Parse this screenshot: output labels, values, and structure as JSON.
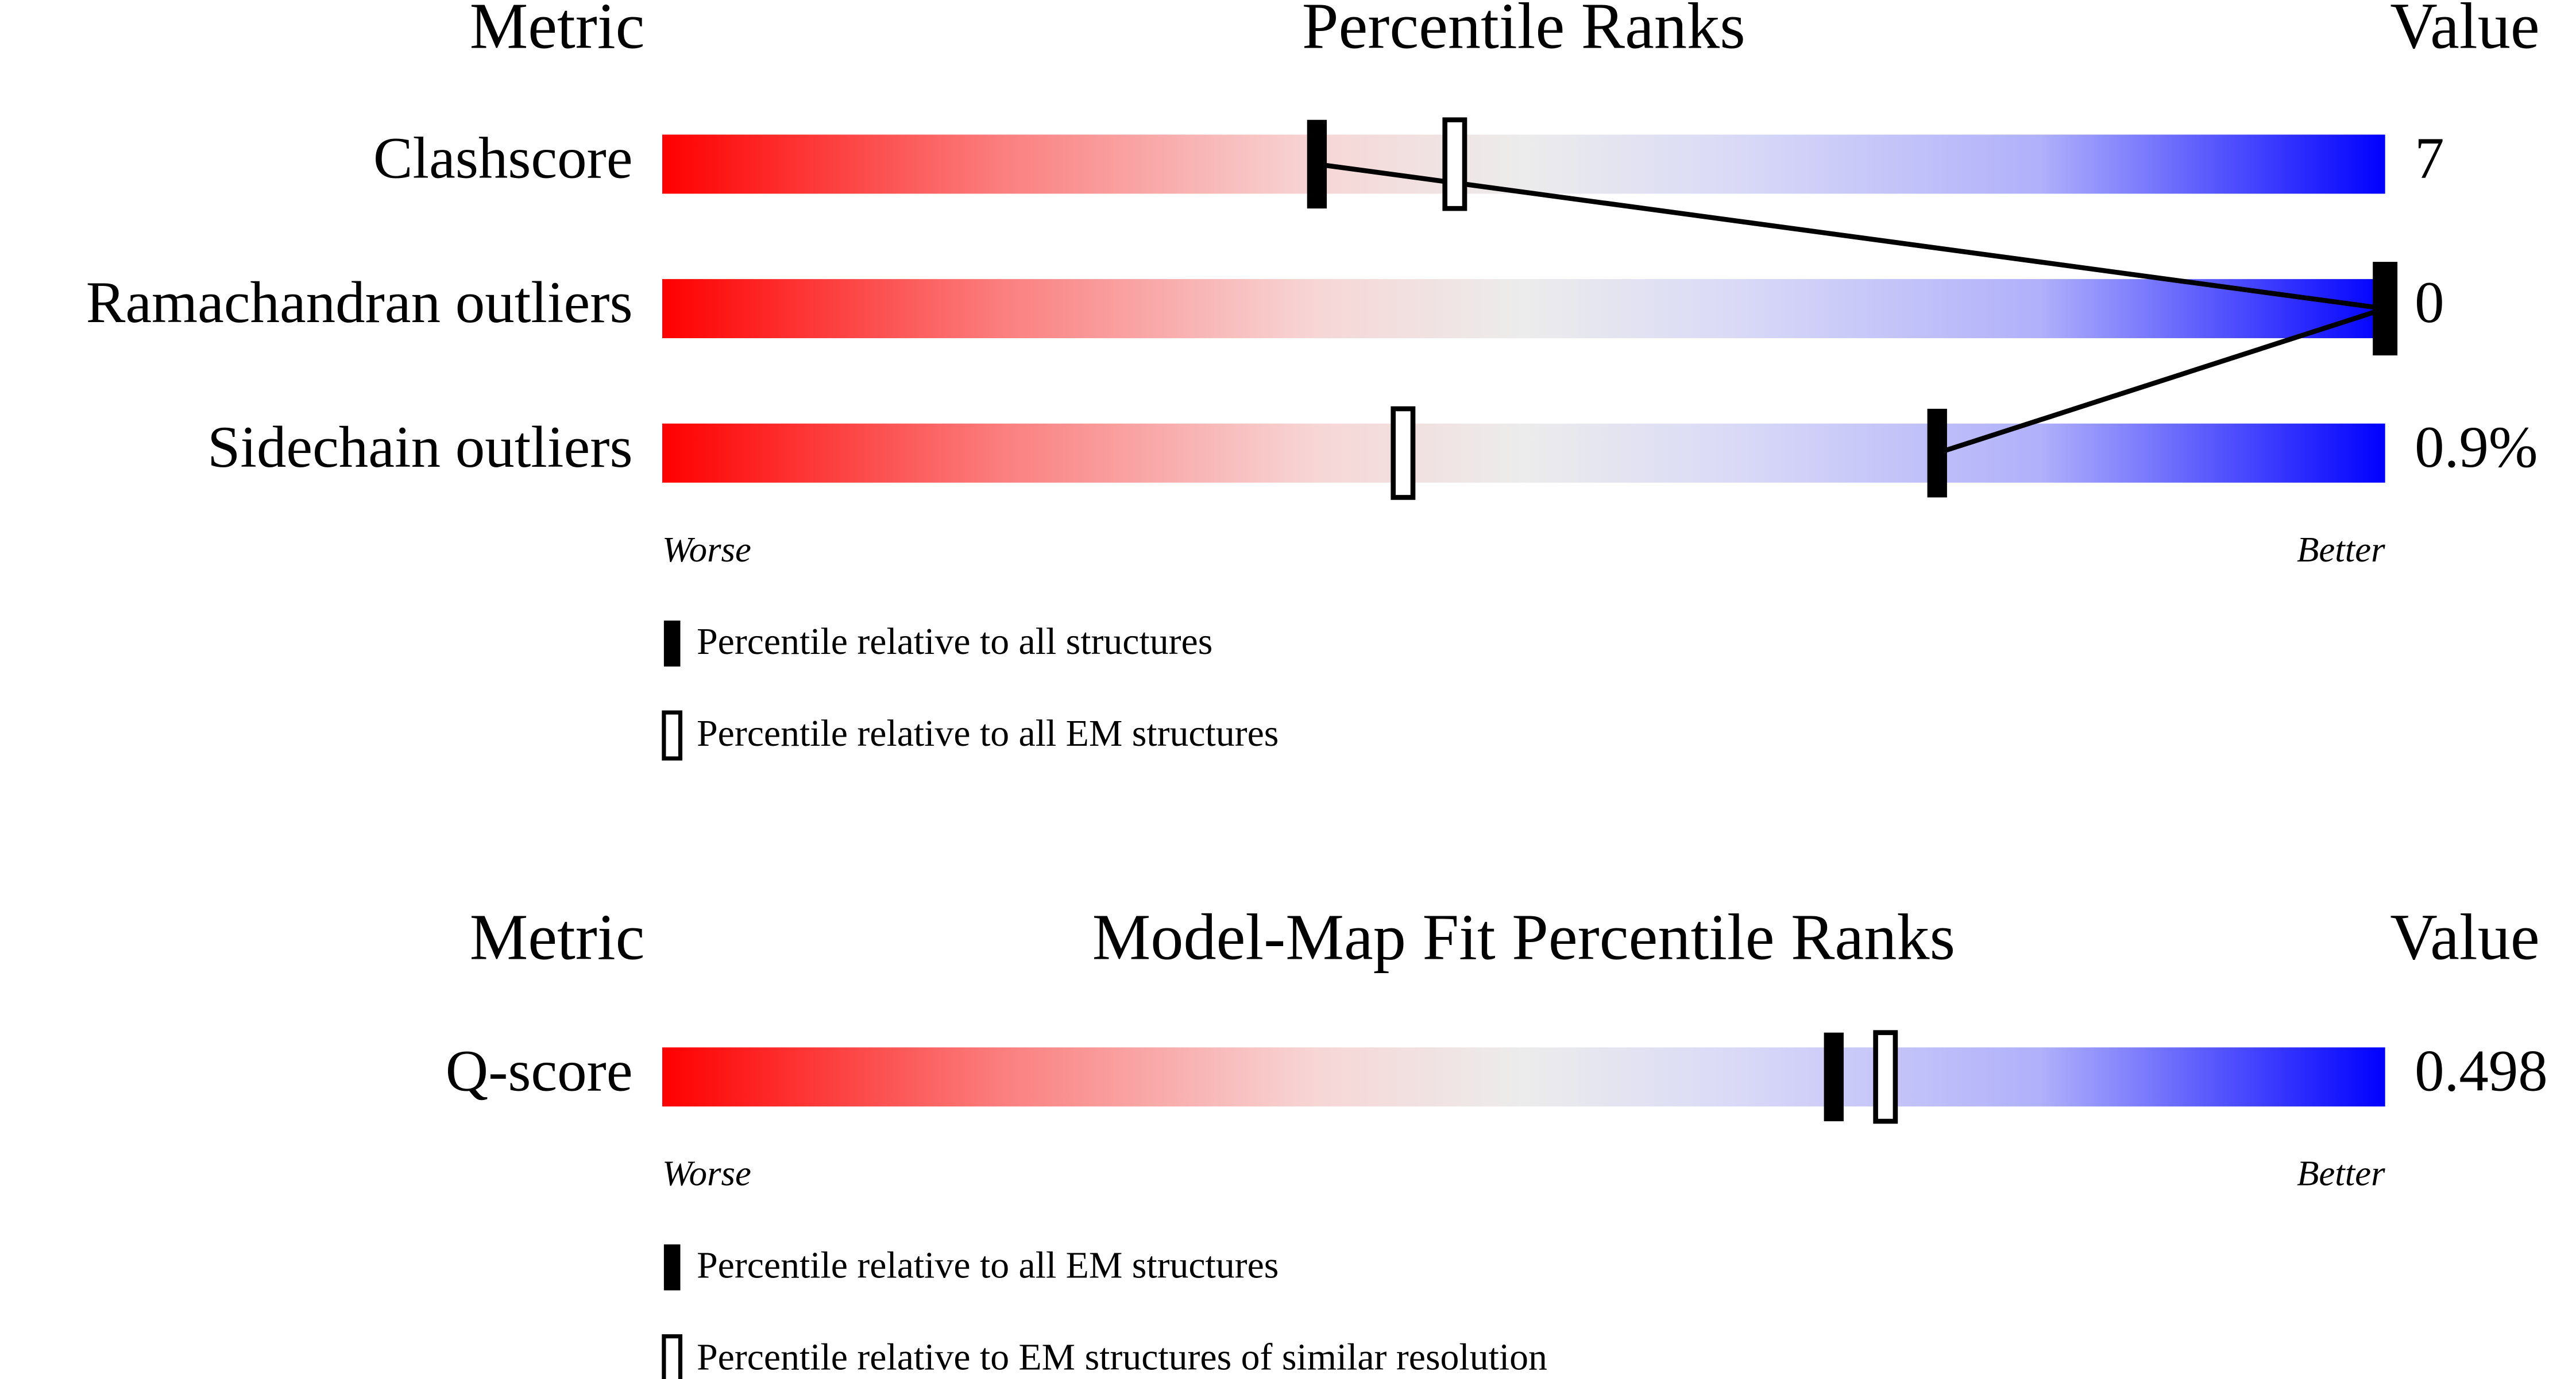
{
  "chart_data": [
    {
      "type": "percentile-slider",
      "metric_header": "Metric",
      "title": "Percentile Ranks",
      "value_header": "Value",
      "categories": [
        "Clashscore",
        "Ramachandran outliers",
        "Sidechain outliers"
      ],
      "metric_values": [
        "7",
        "0",
        "0.9%"
      ],
      "xlim": [
        0,
        100
      ],
      "worse_label": "Worse",
      "better_label": "Better",
      "connect_filled": true,
      "series": [
        {
          "name": "Percentile relative to all structures",
          "color": "#000000",
          "filled": true,
          "values": [
            38,
            100,
            74
          ]
        },
        {
          "name": "Percentile relative to all EM structures",
          "color": "#000000",
          "filled": false,
          "values": [
            46,
            100,
            43
          ]
        }
      ]
    },
    {
      "type": "percentile-slider",
      "metric_header": "Metric",
      "title": "Model-Map Fit Percentile Ranks",
      "value_header": "Value",
      "categories": [
        "Q-score"
      ],
      "metric_values": [
        "0.498"
      ],
      "xlim": [
        0,
        100
      ],
      "worse_label": "Worse",
      "better_label": "Better",
      "connect_filled": false,
      "series": [
        {
          "name": "Percentile relative to all EM structures",
          "color": "#000000",
          "filled": true,
          "values": [
            68
          ]
        },
        {
          "name": "Percentile relative to EM structures of similar resolution",
          "color": "#000000",
          "filled": false,
          "values": [
            71
          ]
        }
      ]
    }
  ]
}
